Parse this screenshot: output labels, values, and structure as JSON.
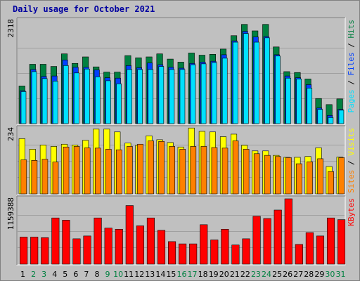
{
  "title": "Daily usage for October 2021",
  "colors": {
    "background": "#c0c0c0",
    "hits": "#008040",
    "files": "#0040ff",
    "pages": "#00e0ff",
    "visits": "#ffff00",
    "sites": "#ff8000",
    "kbytes": "#ff0000",
    "title": "#0000a0",
    "weekend_day": "#008040",
    "weekday": "#000000"
  },
  "chart_data": [
    {
      "type": "bar",
      "ymax_label": "2318",
      "ylim": [
        0,
        2318
      ],
      "legend": [
        {
          "name": "Pages",
          "color": "#00e0ff"
        },
        {
          "name": "Files",
          "color": "#0040ff"
        },
        {
          "name": "Hits",
          "color": "#008040"
        }
      ],
      "categories": [
        "1",
        "2",
        "3",
        "4",
        "5",
        "6",
        "7",
        "8",
        "9",
        "10",
        "11",
        "12",
        "13",
        "14",
        "15",
        "16",
        "17",
        "18",
        "19",
        "20",
        "21",
        "22",
        "23",
        "24",
        "25",
        "26",
        "27",
        "28",
        "29",
        "30",
        "31"
      ],
      "series": [
        {
          "name": "Hits",
          "values": [
            870,
            1370,
            1370,
            1320,
            1610,
            1390,
            1540,
            1310,
            1190,
            1190,
            1570,
            1520,
            1540,
            1610,
            1490,
            1420,
            1630,
            1580,
            1600,
            1720,
            2030,
            2290,
            2140,
            2290,
            1770,
            1200,
            1180,
            1030,
            580,
            440,
            570
          ]
        },
        {
          "name": "Files",
          "values": [
            760,
            1250,
            1090,
            1100,
            1470,
            1300,
            1300,
            1240,
            1060,
            1050,
            1340,
            1290,
            1400,
            1360,
            1300,
            1280,
            1390,
            1420,
            1440,
            1590,
            1910,
            2130,
            2000,
            2010,
            1590,
            1100,
            1060,
            900,
            360,
            190,
            330
          ]
        },
        {
          "name": "Pages",
          "values": [
            740,
            1200,
            1040,
            980,
            1340,
            1170,
            1260,
            1080,
            990,
            920,
            1250,
            1250,
            1250,
            1320,
            1250,
            1250,
            1360,
            1380,
            1410,
            1510,
            1880,
            2080,
            1880,
            1980,
            1560,
            1050,
            1030,
            820,
            330,
            140,
            310
          ]
        }
      ]
    },
    {
      "type": "bar",
      "ymax_label": "234",
      "ylim": [
        0,
        234
      ],
      "legend": [
        {
          "name": "Sites",
          "color": "#ff8000"
        },
        {
          "name": "Visits",
          "color": "#ffff00"
        }
      ],
      "categories": [
        "1",
        "2",
        "3",
        "4",
        "5",
        "6",
        "7",
        "8",
        "9",
        "10",
        "11",
        "12",
        "13",
        "14",
        "15",
        "16",
        "17",
        "18",
        "19",
        "20",
        "21",
        "22",
        "23",
        "24",
        "25",
        "26",
        "27",
        "28",
        "29",
        "30",
        "31"
      ],
      "series": [
        {
          "name": "Visits",
          "values": [
            198,
            160,
            175,
            170,
            178,
            175,
            192,
            232,
            232,
            222,
            182,
            174,
            208,
            194,
            184,
            168,
            236,
            224,
            222,
            205,
            214,
            174,
            154,
            154,
            138,
            131,
            131,
            134,
            165,
            98,
            132
          ]
        },
        {
          "name": "Sites",
          "values": [
            122,
            120,
            124,
            114,
            168,
            170,
            165,
            164,
            160,
            158,
            170,
            178,
            190,
            188,
            170,
            160,
            170,
            170,
            166,
            164,
            190,
            160,
            144,
            138,
            134,
            130,
            108,
            115,
            126,
            80,
            130
          ]
        }
      ]
    },
    {
      "type": "bar",
      "ymax_label": "1159388",
      "ylim": [
        0,
        1159388
      ],
      "legend": [
        {
          "name": "KBytes",
          "color": "#ff0000"
        }
      ],
      "categories": [
        "1",
        "2",
        "3",
        "4",
        "5",
        "6",
        "7",
        "8",
        "9",
        "10",
        "11",
        "12",
        "13",
        "14",
        "15",
        "16",
        "17",
        "18",
        "19",
        "20",
        "21",
        "22",
        "23",
        "24",
        "25",
        "26",
        "27",
        "28",
        "29",
        "30",
        "31"
      ],
      "series": [
        {
          "name": "KBytes",
          "values": [
            480000,
            480000,
            470000,
            820000,
            780000,
            450000,
            500000,
            820000,
            640000,
            620000,
            1040000,
            680000,
            820000,
            600000,
            400000,
            360000,
            360000,
            700000,
            430000,
            620000,
            340000,
            450000,
            850000,
            810000,
            960000,
            1159388,
            350000,
            560000,
            500000,
            820000,
            790000
          ]
        }
      ]
    }
  ],
  "days": [
    {
      "label": "1",
      "weekend": false
    },
    {
      "label": "2",
      "weekend": true
    },
    {
      "label": "3",
      "weekend": true
    },
    {
      "label": "4",
      "weekend": false
    },
    {
      "label": "5",
      "weekend": false
    },
    {
      "label": "6",
      "weekend": false
    },
    {
      "label": "7",
      "weekend": false
    },
    {
      "label": "8",
      "weekend": false
    },
    {
      "label": "9",
      "weekend": true
    },
    {
      "label": "10",
      "weekend": true
    },
    {
      "label": "11",
      "weekend": false
    },
    {
      "label": "12",
      "weekend": false
    },
    {
      "label": "13",
      "weekend": false
    },
    {
      "label": "14",
      "weekend": false
    },
    {
      "label": "15",
      "weekend": false
    },
    {
      "label": "16",
      "weekend": true
    },
    {
      "label": "17",
      "weekend": true
    },
    {
      "label": "18",
      "weekend": false
    },
    {
      "label": "19",
      "weekend": false
    },
    {
      "label": "20",
      "weekend": false
    },
    {
      "label": "21",
      "weekend": false
    },
    {
      "label": "22",
      "weekend": false
    },
    {
      "label": "23",
      "weekend": true
    },
    {
      "label": "24",
      "weekend": true
    },
    {
      "label": "25",
      "weekend": false
    },
    {
      "label": "26",
      "weekend": false
    },
    {
      "label": "27",
      "weekend": false
    },
    {
      "label": "28",
      "weekend": false
    },
    {
      "label": "29",
      "weekend": false
    },
    {
      "label": "30",
      "weekend": true
    },
    {
      "label": "31",
      "weekend": true
    }
  ]
}
